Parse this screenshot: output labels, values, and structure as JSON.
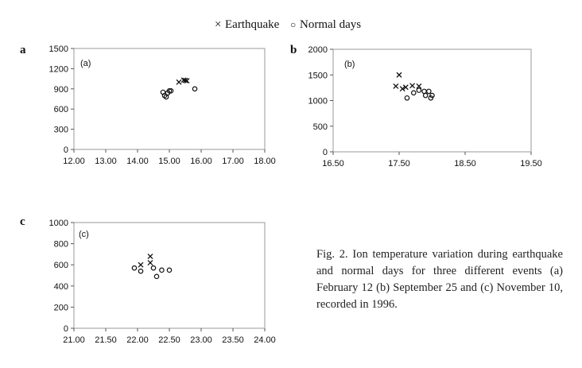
{
  "legend": {
    "earthquake_symbol": "×",
    "earthquake_label": "Earthquake",
    "normal_symbol": "○",
    "normal_label": "Normal days",
    "placement": "top-center"
  },
  "caption": "Fig. 2. Ion temperature variation during earthquake and normal days for three different events (a) February 12 (b) September 25 and (c) November 10, recorded in 1996.",
  "chart_data": [
    {
      "type": "scatter",
      "panel_letter": "a",
      "inset_label": "(a)",
      "xlim": [
        12,
        18
      ],
      "ylim": [
        0,
        1500
      ],
      "x_ticks": [
        12,
        13,
        14,
        15,
        16,
        17,
        18
      ],
      "x_tick_labels": [
        "12.00",
        "13.00",
        "14.00",
        "15.00",
        "16.00",
        "17.00",
        "18.00"
      ],
      "y_ticks": [
        0,
        300,
        600,
        900,
        1200,
        1500
      ],
      "y_tick_labels": [
        "0",
        "300",
        "600",
        "900",
        "1200",
        "1500"
      ],
      "grid": false,
      "series": [
        {
          "name": "Earthquake",
          "marker": "x",
          "points": [
            [
              15.3,
              1000
            ],
            [
              15.45,
              1030
            ],
            [
              15.5,
              1025
            ],
            [
              15.55,
              1020
            ]
          ]
        },
        {
          "name": "Normal days",
          "marker": "o",
          "points": [
            [
              14.8,
              850
            ],
            [
              14.85,
              800
            ],
            [
              14.9,
              780
            ],
            [
              14.95,
              840
            ],
            [
              15.0,
              870
            ],
            [
              15.05,
              870
            ],
            [
              15.8,
              900
            ]
          ]
        }
      ]
    },
    {
      "type": "scatter",
      "panel_letter": "b",
      "inset_label": "(b)",
      "xlim": [
        16.5,
        19.5
      ],
      "ylim": [
        0,
        2000
      ],
      "x_ticks": [
        16.5,
        17.5,
        18.5,
        19.5
      ],
      "x_tick_labels": [
        "16.50",
        "17.50",
        "18.50",
        "19.50"
      ],
      "y_ticks": [
        0,
        500,
        1000,
        1500,
        2000
      ],
      "y_tick_labels": [
        "0",
        "500",
        "1000",
        "1500",
        "2000"
      ],
      "grid": false,
      "series": [
        {
          "name": "Earthquake",
          "marker": "x",
          "points": [
            [
              17.45,
              1280
            ],
            [
              17.5,
              1500
            ],
            [
              17.55,
              1230
            ],
            [
              17.6,
              1260
            ],
            [
              17.7,
              1290
            ],
            [
              17.8,
              1280
            ]
          ]
        },
        {
          "name": "Normal days",
          "marker": "o",
          "points": [
            [
              17.62,
              1050
            ],
            [
              17.72,
              1150
            ],
            [
              17.8,
              1200
            ],
            [
              17.88,
              1180
            ],
            [
              17.9,
              1100
            ],
            [
              17.95,
              1180
            ],
            [
              17.98,
              1050
            ],
            [
              18.0,
              1100
            ]
          ]
        }
      ]
    },
    {
      "type": "scatter",
      "panel_letter": "c",
      "inset_label": "(c)",
      "xlim": [
        21,
        24
      ],
      "ylim": [
        0,
        1000
      ],
      "x_ticks": [
        21,
        21.5,
        22,
        22.5,
        23,
        23.5,
        24
      ],
      "x_tick_labels": [
        "21.00",
        "21.50",
        "22.00",
        "22.50",
        "23.00",
        "23.50",
        "24.00"
      ],
      "y_ticks": [
        0,
        200,
        400,
        600,
        800,
        1000
      ],
      "y_tick_labels": [
        "0",
        "200",
        "400",
        "600",
        "800",
        "1000"
      ],
      "grid": false,
      "series": [
        {
          "name": "Earthquake",
          "marker": "x",
          "points": [
            [
              22.05,
              600
            ],
            [
              22.2,
              680
            ],
            [
              22.2,
              620
            ]
          ]
        },
        {
          "name": "Normal days",
          "marker": "o",
          "points": [
            [
              21.95,
              570
            ],
            [
              22.05,
              540
            ],
            [
              22.25,
              570
            ],
            [
              22.3,
              490
            ],
            [
              22.38,
              550
            ],
            [
              22.5,
              550
            ]
          ]
        }
      ]
    }
  ]
}
